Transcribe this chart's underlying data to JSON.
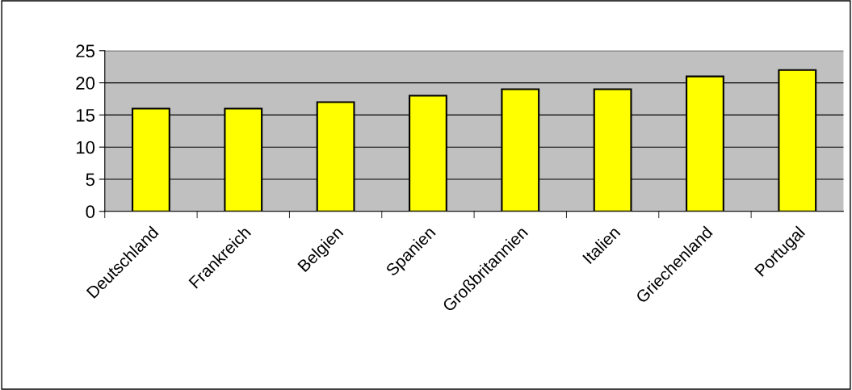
{
  "chart_data": {
    "type": "bar",
    "categories": [
      "Deutschland",
      "Frankreich",
      "Belgien",
      "Spanien",
      "Großbritannien",
      "Italien",
      "Griechenland",
      "Portugal"
    ],
    "values": [
      16,
      16,
      17,
      18,
      19,
      19,
      21,
      22
    ],
    "color": "#ffff00",
    "ylim": [
      0,
      25
    ],
    "yticks": [
      0,
      5,
      10,
      15,
      20,
      25
    ],
    "grid": "y",
    "legend": false
  }
}
